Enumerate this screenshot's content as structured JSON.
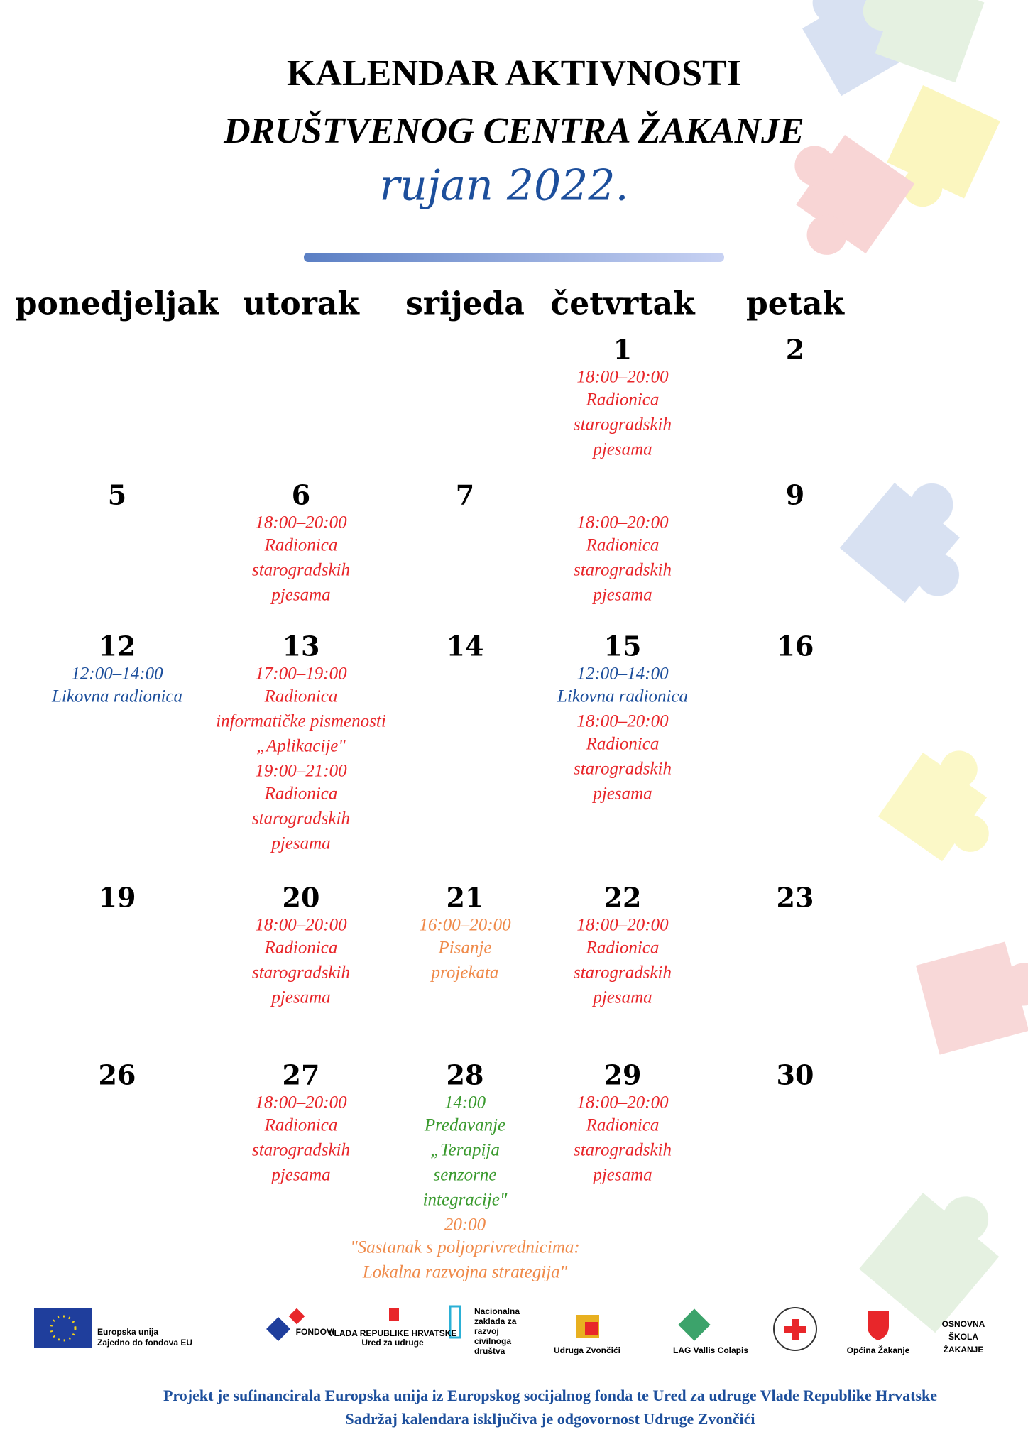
{
  "header": {
    "title_line1": "KALENDAR AKTIVNOSTI",
    "title_line2": "DRUŠTVENOG CENTRA ŽAKANJE",
    "month": "rujan 2022."
  },
  "weekdays": [
    "ponedjeljak",
    "utorak",
    "srijeda",
    "četvrtak",
    "petak"
  ],
  "weeks": [
    [
      null,
      null,
      null,
      {
        "day": 1,
        "events": [
          {
            "time": "18:00–20:00",
            "lines": [
              "Radionica",
              "starogradskih",
              "pjesama"
            ],
            "color": "#e8262a"
          }
        ]
      },
      {
        "day": 2
      }
    ],
    [
      {
        "day": 5
      },
      {
        "day": 6,
        "events": [
          {
            "time": "18:00–20:00",
            "lines": [
              "Radionica",
              "starogradskih",
              "pjesama"
            ],
            "color": "#e8262a"
          }
        ]
      },
      {
        "day": 7
      },
      {
        "events": [
          {
            "time": "18:00–20:00",
            "lines": [
              "Radionica",
              "starogradskih",
              "pjesama"
            ],
            "color": "#e8262a"
          }
        ]
      },
      {
        "day": 9
      }
    ],
    [
      {
        "day": 12,
        "events": [
          {
            "time": "12:00–14:00",
            "lines": [
              "Likovna radionica"
            ],
            "color": "#1d4f9c"
          }
        ]
      },
      {
        "day": 13,
        "events": [
          {
            "time": "17:00–19:00",
            "lines": [
              "Radionica",
              "informatičke pismenosti",
              "„Aplikacije\""
            ],
            "color": "#e8262a"
          },
          {
            "time": "19:00–21:00",
            "lines": [
              "Radionica",
              "starogradskih",
              "pjesama"
            ],
            "color": "#e8262a"
          }
        ]
      },
      {
        "day": 14
      },
      {
        "day": 15,
        "events": [
          {
            "time": "12:00–14:00",
            "lines": [
              "Likovna radionica"
            ],
            "color": "#1d4f9c"
          },
          {
            "time": "18:00–20:00",
            "lines": [
              "Radionica",
              "starogradskih",
              "pjesama"
            ],
            "color": "#e8262a"
          }
        ]
      },
      {
        "day": 16
      }
    ],
    [
      {
        "day": 19
      },
      {
        "day": 20,
        "events": [
          {
            "time": "18:00–20:00",
            "lines": [
              "Radionica",
              "starogradskih",
              "pjesama"
            ],
            "color": "#e8262a"
          }
        ]
      },
      {
        "day": 21,
        "events": [
          {
            "time": "16:00–20:00",
            "lines": [
              "Pisanje",
              "projekata"
            ],
            "color": "#ef8a4a"
          }
        ]
      },
      {
        "day": 22,
        "events": [
          {
            "time": "18:00–20:00",
            "lines": [
              "Radionica",
              "starogradskih",
              "pjesama"
            ],
            "color": "#e8262a"
          }
        ]
      },
      {
        "day": 23
      }
    ],
    [
      {
        "day": 26
      },
      {
        "day": 27,
        "events": [
          {
            "time": "18:00–20:00",
            "lines": [
              "Radionica",
              "starogradskih",
              "pjesama"
            ],
            "color": "#e8262a"
          }
        ]
      },
      {
        "day": 28,
        "events": [
          {
            "time": "14:00",
            "lines": [
              "Predavanje",
              "„Terapija",
              "senzorne",
              "integracije\""
            ],
            "color": "#3a9a2e"
          },
          {
            "time": "20:00",
            "color": "#ef8a4a"
          },
          {
            "lines": [
              "\"Sastanak s poljoprivrednicima:",
              "Lokalna razvojna strategija\""
            ],
            "color": "#ef8a4a"
          }
        ]
      },
      {
        "day": 29,
        "events": [
          {
            "time": "18:00–20:00",
            "lines": [
              "Radionica",
              "starogradskih",
              "pjesama"
            ],
            "color": "#e8262a"
          }
        ]
      },
      {
        "day": 30
      }
    ]
  ],
  "logos": [
    {
      "lines": [
        "Europska unija",
        "Zajedno do fondova EU"
      ]
    },
    {
      "lines": [
        "FONDOVI"
      ]
    },
    {
      "lines": [
        "VLADA REPUBLIKE HRVATSKE",
        "Ured za udruge"
      ]
    },
    {
      "lines": [
        "Nacionalna",
        "zaklada za",
        "razvoj",
        "civilnoga",
        "društva"
      ]
    },
    {
      "lines": [
        "Udruga Zvončići"
      ]
    },
    {
      "lines": [
        "LAG Vallis Colapis"
      ]
    },
    {
      "lines": [
        "Općina Žakanje"
      ]
    },
    {
      "lines": [
        "OSNOVNA",
        "ŠKOLA",
        "ŽAKANJE"
      ]
    }
  ],
  "footer": [
    "Projekt je sufinancirala Europska unija iz Europskog socijalnog fonda te Ured za udruge Vlade Republike Hrvatske",
    "Sadržaj kalendara isključiva je odgovornost Udruge Zvončići"
  ]
}
